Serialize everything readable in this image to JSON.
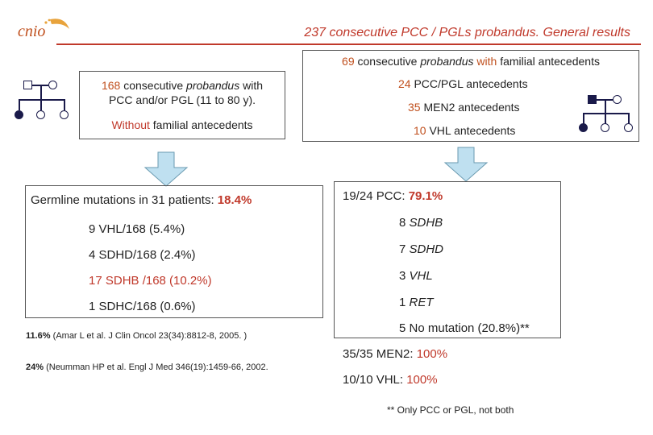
{
  "logo": {
    "text": "cnio"
  },
  "header": {
    "title": "237 consecutive PCC / PGLs probandus. General results"
  },
  "familial_box": {
    "heading_count": "69",
    "heading_rest_a": " consecutive ",
    "heading_rest_b": "probandus",
    "heading_rest_c": " with ",
    "heading_rest_d": "familial",
    "heading_rest_e": " antecedents",
    "l1_num": "24",
    "l1_text": " PCC/PGL antecedents",
    "l2_num": "35",
    "l2_text": " MEN2 antecedents",
    "l3_num": "10",
    "l3_text": " VHL antecedents"
  },
  "sporadic_box": {
    "count": "168",
    "line1_rest_a": " consecutive ",
    "line1_rest_b": "probandus",
    "line1_rest_c": " with",
    "line2": "PCC and/or PGL (11 to 80 y).",
    "without_a": "Without",
    "without_b": " familial",
    "without_c": " antecedents"
  },
  "germline_box": {
    "heading": "Germline mutations in 31 patients: ",
    "heading_value": "18.4%",
    "rows": [
      {
        "text": "9 VHL/168 (5.4%)"
      },
      {
        "text": "4 SDHD/168 (2.4%)"
      },
      {
        "text": "17 SDHB /168 (10.2%)"
      },
      {
        "text": "1 SDHC/168 (0.6%)"
      }
    ]
  },
  "references": [
    {
      "pct": "11.6%",
      "text": " (Amar L et al. J Clin Oncol 23(34):8812-8, 2005. )"
    },
    {
      "pct": "24%",
      "text": " (Neumman HP et al. Engl J Med 346(19):1459-66, 2002."
    }
  ],
  "results_box": {
    "heading": "19/24 PCC: ",
    "heading_value": "79.1%",
    "items": [
      {
        "num": "8 ",
        "gene": "SDHB"
      },
      {
        "num": "7 ",
        "gene": "SDHD"
      },
      {
        "num": "3 ",
        "gene": "VHL"
      },
      {
        "num": "1 ",
        "gene": "RET"
      }
    ],
    "no_mutation": "5 No mutation (20.8%)**",
    "men2_a": "35/35 MEN2: ",
    "men2_b": "100%",
    "vhl_a": "10/10 VHL: ",
    "vhl_b": "100%"
  },
  "footnote": "** Only PCC or PGL, not both",
  "colors": {
    "accent": "#c0392b",
    "arrow_fill": "#bfe0f0",
    "pedigree": "#1a1a4a"
  }
}
